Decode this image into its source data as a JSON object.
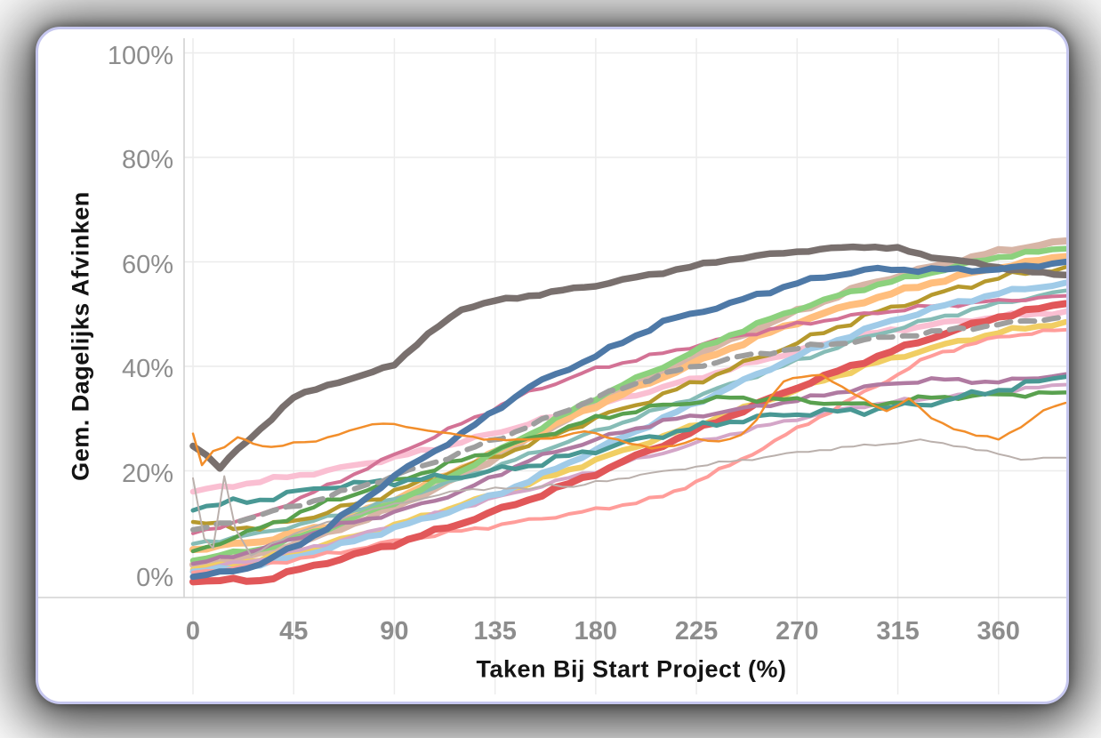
{
  "card": {
    "background": "#ffffff",
    "border_color": "#c6c7ef"
  },
  "axis_style": {
    "tick_color": "#8d8d8d",
    "grid_color": "#ececec",
    "axis_line_color": "#d2d2d2",
    "title_color": "#141414"
  },
  "chart_data": {
    "type": "line",
    "title": "",
    "xlabel": "Taken Bij Start Project (%)",
    "ylabel": "Gem. Dagelijks Afvinken",
    "x_ticks": [
      0,
      45,
      90,
      135,
      180,
      225,
      270,
      315,
      360
    ],
    "y_ticks": [
      "0%",
      "20%",
      "40%",
      "60%",
      "80%",
      "100%"
    ],
    "y_tick_values": [
      0,
      20,
      40,
      60,
      80,
      100
    ],
    "xlim": [
      0,
      390
    ],
    "ylim": [
      0,
      100
    ],
    "grid": true,
    "legend_position": "none",
    "x_default": [
      0,
      30,
      60,
      90,
      120,
      150,
      180,
      210,
      240,
      270,
      300,
      330,
      360,
      390
    ],
    "series": [
      {
        "name": "light-pink",
        "color": "#fabfd2",
        "width": 6.5,
        "y": [
          16,
          18,
          20,
          22.5,
          25.5,
          29,
          32.5,
          36,
          39.5,
          43,
          46,
          48,
          49.5,
          50.5
        ]
      },
      {
        "name": "tan",
        "color": "#d7b5a6",
        "width": 8,
        "y": [
          2,
          4,
          8,
          13,
          19,
          26,
          33,
          39,
          45,
          50.5,
          55.5,
          59,
          62,
          64
        ]
      },
      {
        "name": "light-orange",
        "color": "#ffbe7d",
        "width": 8,
        "y": [
          5,
          6.5,
          9.5,
          14.5,
          20.5,
          26.5,
          32.5,
          38,
          43.5,
          48.5,
          52.5,
          56,
          59,
          61
        ]
      },
      {
        "name": "yellow",
        "color": "#f1ce63",
        "width": 6.5,
        "y": [
          1,
          3,
          6,
          9.5,
          13.5,
          17.5,
          22,
          26.5,
          31,
          35.5,
          40,
          43.5,
          46.5,
          48.5
        ]
      },
      {
        "name": "light-teal",
        "color": "#86bcb6",
        "width": 4.5,
        "y": [
          6,
          8,
          11,
          14.5,
          18.5,
          23,
          27.5,
          32,
          36.5,
          41,
          45.5,
          49,
          52,
          54.5
        ]
      },
      {
        "name": "light-purple",
        "color": "#d4a6c8",
        "width": 4,
        "y": [
          1,
          3,
          6,
          9.5,
          13,
          16.5,
          20,
          23.5,
          27,
          30,
          32.5,
          34,
          35,
          36.5
        ]
      },
      {
        "name": "olive",
        "color": "#b6992d",
        "width": 4.5,
        "jitter": 0.7,
        "y": [
          10,
          9,
          12,
          16,
          20.5,
          25,
          30,
          34.5,
          39.5,
          44.5,
          49.5,
          53.5,
          57,
          59
        ]
      },
      {
        "name": "rose",
        "color": "#d37295",
        "width": 4,
        "y": [
          8,
          11.5,
          17,
          23,
          29,
          35,
          39.5,
          42.5,
          45.5,
          48,
          50,
          51.5,
          52.5,
          53.5
        ]
      },
      {
        "name": "light-green",
        "color": "#8cd17d",
        "width": 6.5,
        "y": [
          3,
          5,
          9,
          14,
          20,
          27,
          34,
          40,
          46,
          51,
          55,
          58,
          61,
          62.5
        ]
      },
      {
        "name": "light-blue",
        "color": "#a0cbe8",
        "width": 7,
        "y": [
          0.5,
          2,
          5,
          9,
          13,
          18,
          24,
          30,
          36,
          42,
          47,
          51,
          54,
          56
        ]
      },
      {
        "name": "salmon",
        "color": "#ff9d9a",
        "width": 4,
        "x": [
          0,
          30,
          60,
          90,
          120,
          150,
          180,
          210,
          225,
          240,
          255,
          270,
          285,
          300,
          315,
          330,
          345,
          360,
          375,
          390
        ],
        "y": [
          0.5,
          2,
          4,
          6.5,
          8.5,
          10.5,
          12.5,
          15,
          18,
          21,
          24.5,
          28,
          31.5,
          35,
          38.5,
          42,
          44,
          45.5,
          46.5,
          47
        ]
      },
      {
        "name": "red",
        "color": "#e15759",
        "width": 8,
        "y": [
          -1,
          -1,
          2.5,
          6,
          10,
          14.5,
          19.5,
          25,
          30.5,
          36,
          41,
          45.5,
          49.5,
          52
        ]
      },
      {
        "name": "purple",
        "color": "#b07aa1",
        "width": 4.5,
        "y": [
          2,
          5,
          9,
          12,
          16,
          22,
          26,
          29.5,
          31.5,
          33.5,
          36,
          37.5,
          37,
          38.5
        ]
      },
      {
        "name": "green",
        "color": "#59a14f",
        "width": 4.5,
        "jitter": 0.6,
        "y": [
          4.5,
          9,
          14,
          18,
          22,
          26,
          30,
          32.5,
          34,
          33.5,
          32.5,
          34,
          34.5,
          35
        ]
      },
      {
        "name": "dark-teal",
        "color": "#499894",
        "width": 5,
        "jitter": 0.8,
        "y": [
          13,
          14.5,
          17,
          18,
          19,
          21,
          24,
          27,
          29.5,
          31,
          31.5,
          33,
          35.5,
          38
        ]
      },
      {
        "name": "average-dashed",
        "color": "#9e9e9e",
        "width": 6,
        "dash": "16 11",
        "y": [
          8.5,
          11.5,
          15,
          19,
          23.5,
          28.5,
          34,
          38.5,
          41.5,
          43.5,
          45,
          46.5,
          48,
          49.5
        ]
      },
      {
        "name": "light-gray",
        "color": "#bab0ac",
        "width": 2,
        "jitter": 0.3,
        "x": [
          0,
          5,
          9,
          14,
          19,
          26,
          35,
          45,
          60,
          75,
          90,
          105,
          120,
          135,
          150,
          160,
          170,
          180,
          190,
          205,
          220,
          235,
          250,
          265,
          280,
          295,
          310,
          325,
          340,
          355,
          370,
          390
        ],
        "y": [
          18.5,
          7,
          5.5,
          19,
          9,
          3.5,
          6,
          8,
          10,
          12,
          13.5,
          15,
          16.2,
          16.8,
          16.4,
          17.5,
          16.8,
          17.8,
          18.5,
          19.5,
          20.5,
          21.5,
          22.3,
          23.2,
          24,
          24.6,
          25.2,
          25.8,
          25,
          23.6,
          22.3,
          22.5
        ]
      },
      {
        "name": "dark-gray",
        "color": "#79706e",
        "width": 7.5,
        "jitter": 0.3,
        "x": [
          0,
          6,
          12,
          20,
          30,
          45,
          60,
          75,
          90,
          105,
          120,
          135,
          150,
          165,
          180,
          210,
          240,
          270,
          285,
          300,
          315,
          330,
          345,
          360,
          375,
          390
        ],
        "y": [
          25,
          23,
          20.5,
          24,
          28,
          34,
          36.5,
          38,
          40.5,
          46,
          51,
          52.5,
          53.5,
          54.5,
          55.5,
          58,
          60.5,
          62,
          62.5,
          63,
          62.5,
          61,
          60,
          59,
          58,
          57.5
        ]
      },
      {
        "name": "blue",
        "color": "#4e79a7",
        "width": 7,
        "y": [
          -0.5,
          2,
          9,
          19,
          27,
          36,
          42,
          48.5,
          52,
          56,
          58.5,
          58.5,
          58.5,
          60
        ]
      },
      {
        "name": "orange",
        "color": "#f28e2b",
        "width": 2.5,
        "jitter": 0.25,
        "x": [
          0,
          4,
          9,
          14,
          20,
          27,
          35,
          45,
          55,
          65,
          75,
          85,
          95,
          105,
          115,
          130,
          145,
          160,
          175,
          190,
          205,
          215,
          225,
          235,
          245,
          252,
          258,
          264,
          272,
          281,
          290,
          300,
          310,
          320,
          330,
          340,
          350,
          360,
          370,
          380,
          390
        ],
        "y": [
          27,
          21,
          24,
          24.5,
          26.5,
          25,
          24.5,
          25.5,
          25.5,
          27,
          28.5,
          29,
          28.5,
          27.8,
          27,
          26.2,
          25.8,
          26.3,
          27.5,
          26,
          24.2,
          24.8,
          26.2,
          25.4,
          26.8,
          30,
          34,
          37,
          38,
          38.5,
          36,
          33.5,
          31.5,
          33.8,
          30,
          28.2,
          26.8,
          26,
          28.5,
          31.5,
          33
        ]
      }
    ]
  }
}
